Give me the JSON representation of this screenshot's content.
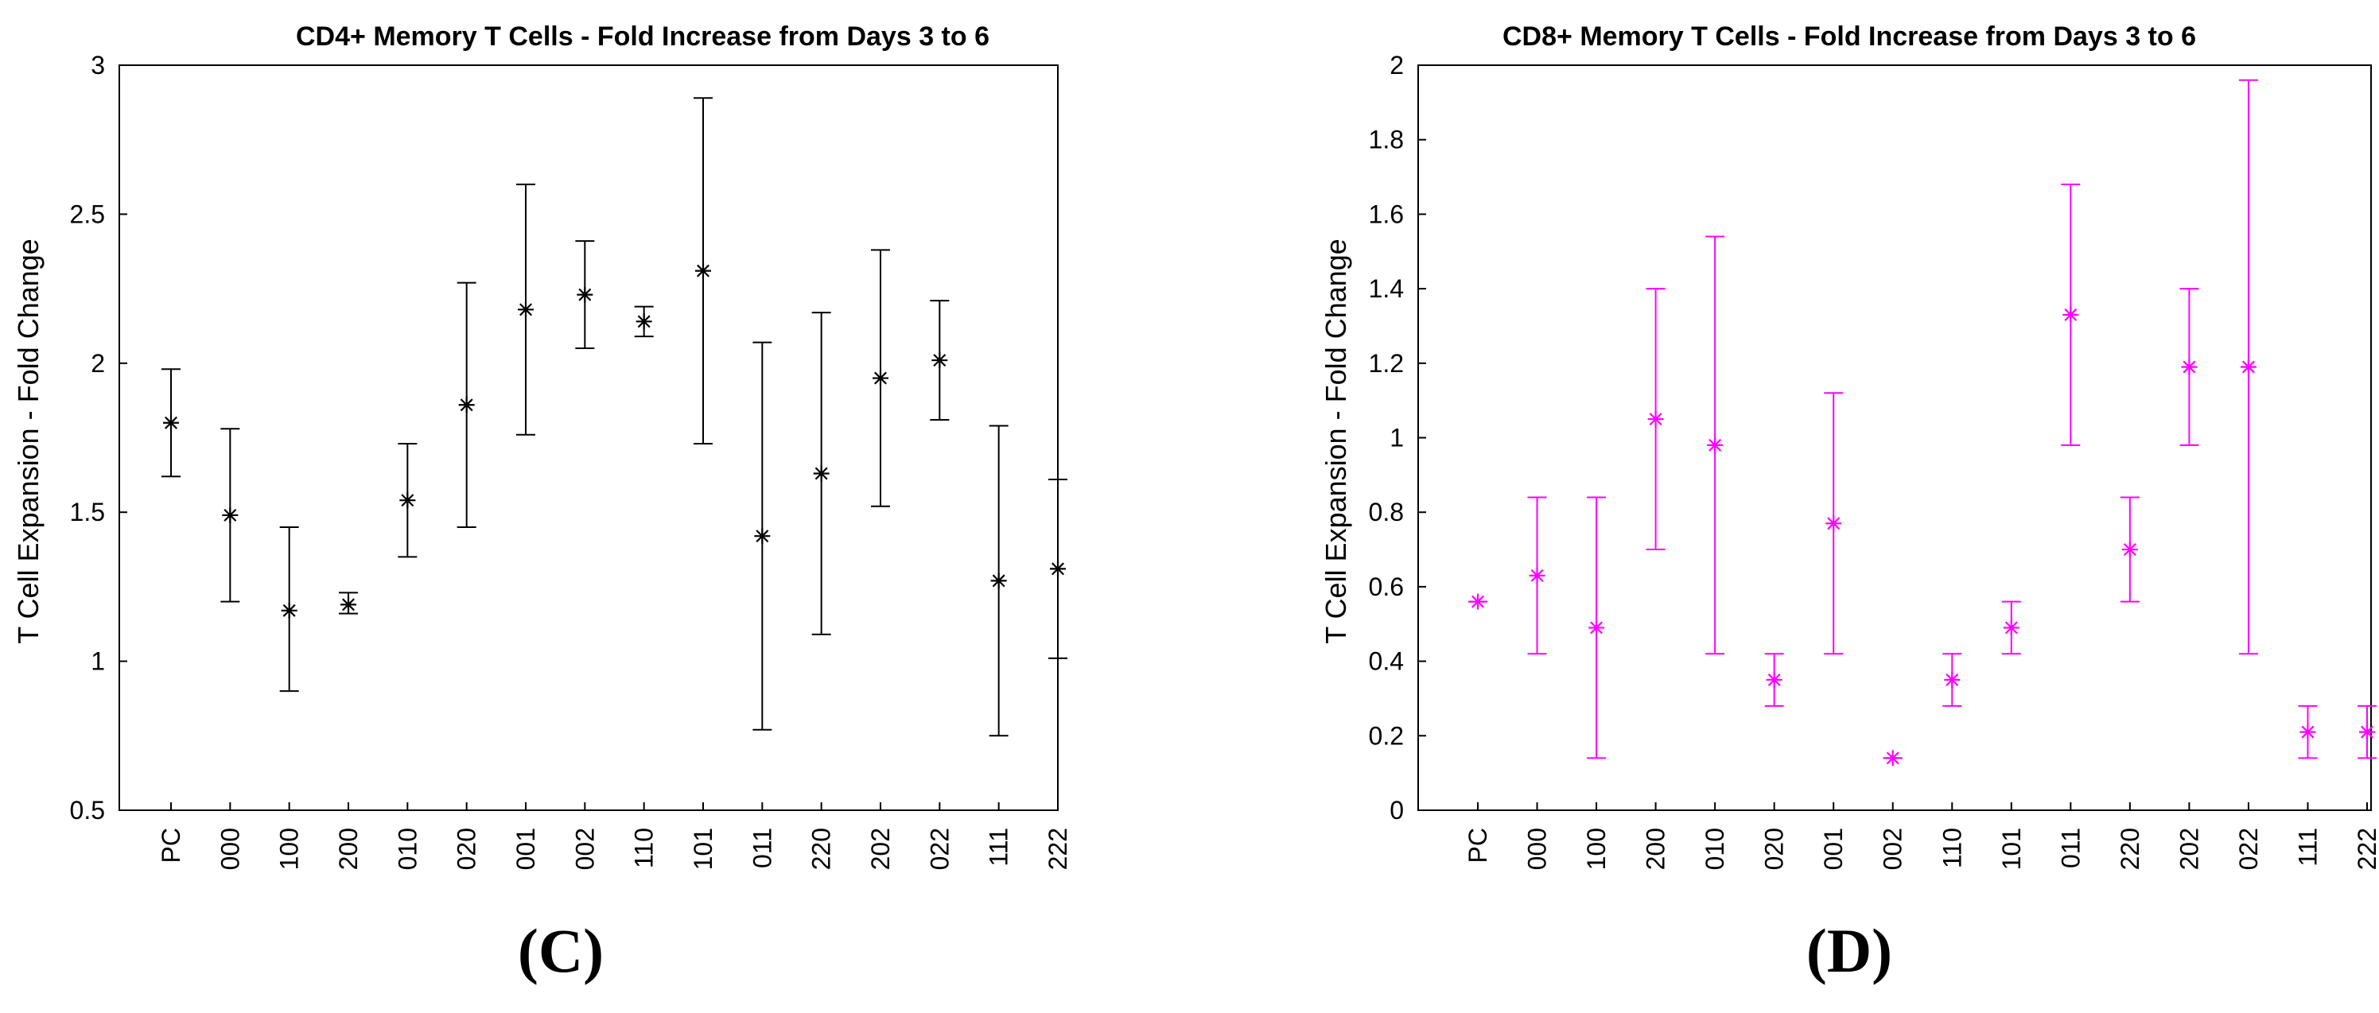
{
  "chart_data": [
    {
      "type": "scatter",
      "panel_label": "(C)",
      "title": "CD4+ Memory T Cells - Fold Increase from Days 3 to 6",
      "xlabel": "",
      "ylabel": "T Cell Expansion - Fold Change",
      "ylim": [
        0.5,
        3
      ],
      "yticks": [
        0.5,
        1,
        1.5,
        2,
        2.5,
        3
      ],
      "ytick_labels": [
        "0.5",
        "1",
        "1.5",
        "2",
        "2.5",
        "3"
      ],
      "color": "#000000",
      "marker": "asterisk",
      "grid": false,
      "categories": [
        "PC",
        "000",
        "100",
        "200",
        "010",
        "020",
        "001",
        "002",
        "110",
        "101",
        "011",
        "220",
        "202",
        "022",
        "111",
        "222"
      ],
      "values": [
        1.8,
        1.49,
        1.17,
        1.19,
        1.54,
        1.86,
        2.18,
        2.23,
        2.14,
        2.31,
        1.42,
        1.63,
        1.95,
        2.01,
        1.27,
        1.31
      ],
      "err_low": [
        1.62,
        1.2,
        0.9,
        1.16,
        1.35,
        1.45,
        1.76,
        2.05,
        2.09,
        1.73,
        0.77,
        1.09,
        1.52,
        1.81,
        0.75,
        1.01
      ],
      "err_high": [
        1.98,
        1.78,
        1.45,
        1.23,
        1.73,
        2.27,
        2.6,
        2.41,
        2.19,
        2.89,
        2.07,
        2.17,
        2.38,
        2.21,
        1.79,
        1.61
      ]
    },
    {
      "type": "scatter",
      "panel_label": "(D)",
      "title": "CD8+ Memory T Cells - Fold Increase from Days 3 to 6",
      "xlabel": "",
      "ylabel": "T Cell Expansion - Fold Change",
      "ylim": [
        0,
        2
      ],
      "yticks": [
        0,
        0.2,
        0.4,
        0.6,
        0.8,
        1,
        1.2,
        1.4,
        1.6,
        1.8,
        2
      ],
      "ytick_labels": [
        "0",
        "0.2",
        "0.4",
        "0.6",
        "0.8",
        "1",
        "1.2",
        "1.4",
        "1.6",
        "1.8",
        "2"
      ],
      "color": "#ff00ff",
      "marker": "asterisk",
      "grid": false,
      "categories": [
        "PC",
        "000",
        "100",
        "200",
        "010",
        "020",
        "001",
        "002",
        "110",
        "101",
        "011",
        "220",
        "202",
        "022",
        "111",
        "222"
      ],
      "values": [
        0.56,
        0.63,
        0.49,
        1.05,
        0.98,
        0.35,
        0.77,
        0.14,
        0.35,
        0.49,
        1.33,
        0.7,
        1.19,
        1.19,
        0.21,
        0.21
      ],
      "err_low": [
        0.56,
        0.42,
        0.14,
        0.7,
        0.42,
        0.28,
        0.42,
        0.14,
        0.28,
        0.42,
        0.98,
        0.56,
        0.98,
        0.42,
        0.14,
        0.14
      ],
      "err_high": [
        0.56,
        0.84,
        0.84,
        1.4,
        1.54,
        0.42,
        1.12,
        0.14,
        0.42,
        0.56,
        1.68,
        0.84,
        1.4,
        1.96,
        0.28,
        0.28
      ]
    }
  ]
}
